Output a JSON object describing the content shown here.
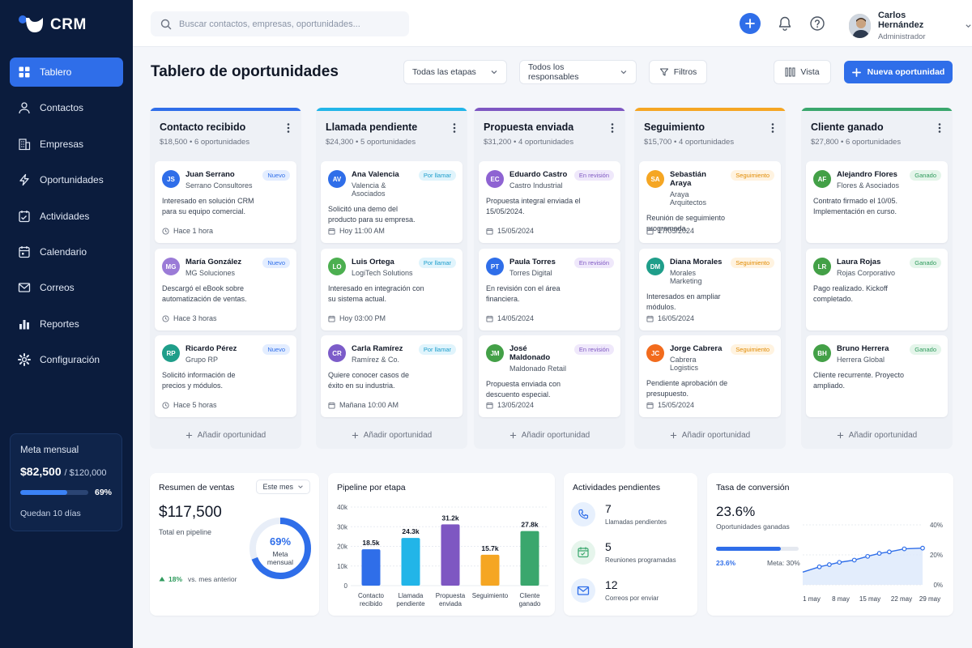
{
  "app": {
    "name": "CRM"
  },
  "colors": {
    "accent": "#2f6ee9",
    "sidebar": "#0b1c3d"
  },
  "nav": [
    {
      "label": "Tablero",
      "icon": "grid-icon"
    },
    {
      "label": "Contactos",
      "icon": "users-icon"
    },
    {
      "label": "Empresas",
      "icon": "building-icon"
    },
    {
      "label": "Oportunidades",
      "icon": "bolt-icon"
    },
    {
      "label": "Actividades",
      "icon": "checklist-icon"
    },
    {
      "label": "Calendario",
      "icon": "calendar-icon"
    },
    {
      "label": "Correos",
      "icon": "mail-icon"
    },
    {
      "label": "Reportes",
      "icon": "bar-chart-icon"
    },
    {
      "label": "Configuración",
      "icon": "gear-icon"
    }
  ],
  "goal": {
    "title": "Meta mensual",
    "amount": "$82,500",
    "target": "/ $120,000",
    "percent": "69%",
    "progress": 0.69,
    "remaining": "Quedan 10 días"
  },
  "search": {
    "placeholder": "Buscar contactos, empresas, oportunidades..."
  },
  "user": {
    "name": "Carlos Hernández",
    "role": "Administrador"
  },
  "page": {
    "title": "Tablero de oportunidades"
  },
  "toolbar": {
    "stages": "Todas las etapas",
    "owners": "Todos los responsables",
    "filters": "Filtros",
    "view": "Vista",
    "new_opportunity": "Nueva oportunidad"
  },
  "add_label": "Añadir oportunidad",
  "columns": [
    {
      "title": "Contacto recibido",
      "summary": "$18,500 • 6 oportunidades",
      "color": "#2f6ee9",
      "badge": "Nuevo",
      "badge_bg": "#e3edff",
      "badge_fg": "#2f6ee9",
      "time_icon": "clock",
      "cards": [
        {
          "initials": "JS",
          "color": "#2f6ee9",
          "name": "Juan Serrano",
          "company": "Serrano Consultores",
          "desc": "Interesado en solución CRM para su equipo comercial.",
          "time": "Hace 1 hora"
        },
        {
          "initials": "MG",
          "color": "#9b7bd7",
          "name": "María González",
          "company": "MG Soluciones",
          "desc": "Descargó el eBook sobre automatización de ventas.",
          "time": "Hace 3 horas"
        },
        {
          "initials": "RP",
          "color": "#1f9e8a",
          "name": "Ricardo Pérez",
          "company": "Grupo RP",
          "desc": "Solicitó información de precios y módulos.",
          "time": "Hace 5 horas"
        }
      ]
    },
    {
      "title": "Llamada pendiente",
      "summary": "$24,300 • 5 oportunidades",
      "color": "#22b5e8",
      "badge": "Por llamar",
      "badge_bg": "#e0f4fc",
      "badge_fg": "#1a9ccb",
      "time_icon": "calendar",
      "cards": [
        {
          "initials": "AV",
          "color": "#2f6ee9",
          "name": "Ana Valencia",
          "company": "Valencia & Asociados",
          "desc": "Solicitó una demo del producto para su empresa.",
          "time": "Hoy 11:00 AM"
        },
        {
          "initials": "LO",
          "color": "#4caf50",
          "name": "Luis Ortega",
          "company": "LogiTech Solutions",
          "desc": "Interesado en integración con su sistema actual.",
          "time": "Hoy 03:00 PM"
        },
        {
          "initials": "CR",
          "color": "#7c5cc9",
          "name": "Carla Ramírez",
          "company": "Ramírez & Co.",
          "desc": "Quiere conocer casos de éxito en su industria.",
          "time": "Mañana 10:00 AM"
        }
      ]
    },
    {
      "title": "Propuesta enviada",
      "summary": "$31,200 • 4 oportunidades",
      "color": "#7e57c2",
      "badge": "En revisión",
      "badge_bg": "#efe8fb",
      "badge_fg": "#7e57c2",
      "time_icon": "calendar",
      "cards": [
        {
          "initials": "EC",
          "color": "#8e63d2",
          "name": "Eduardo Castro",
          "company": "Castro Industrial",
          "desc": "Propuesta integral enviada el 15/05/2024.",
          "time": "15/05/2024"
        },
        {
          "initials": "PT",
          "color": "#2f6ee9",
          "name": "Paula Torres",
          "company": "Torres Digital",
          "desc": "En revisión con el área financiera.",
          "time": "14/05/2024"
        },
        {
          "initials": "JM",
          "color": "#43a047",
          "name": "José Maldonado",
          "company": "Maldonado Retail",
          "desc": "Propuesta enviada con descuento especial.",
          "time": "13/05/2024"
        }
      ]
    },
    {
      "title": "Seguimiento",
      "summary": "$15,700 • 4 oportunidades",
      "color": "#f5a623",
      "badge": "Seguimiento",
      "badge_bg": "#fff3e0",
      "badge_fg": "#e08a00",
      "time_icon": "calendar",
      "cards": [
        {
          "initials": "SA",
          "color": "#f5a623",
          "name": "Sebastián Araya",
          "company": "Araya Arquitectos",
          "desc": "Reunión de seguimiento programada.",
          "time": "17/05/2024"
        },
        {
          "initials": "DM",
          "color": "#1f9e8a",
          "name": "Diana Morales",
          "company": "Morales Marketing",
          "desc": "Interesados en ampliar módulos.",
          "time": "16/05/2024"
        },
        {
          "initials": "JC",
          "color": "#f26b1d",
          "name": "Jorge Cabrera",
          "company": "Cabrera Logistics",
          "desc": "Pendiente aprobación de presupuesto.",
          "time": "15/05/2024"
        }
      ]
    },
    {
      "title": "Cliente ganado",
      "summary": "$27,800 • 6 oportunidades",
      "color": "#3aa76d",
      "badge": "Ganado",
      "badge_bg": "#e4f5ea",
      "badge_fg": "#2e9a5c",
      "time_icon": "none",
      "cards": [
        {
          "initials": "AF",
          "color": "#43a047",
          "name": "Alejandro Flores",
          "company": "Flores & Asociados",
          "desc": "Contrato firmado el 10/05. Implementación en curso.",
          "time": ""
        },
        {
          "initials": "LR",
          "color": "#43a047",
          "name": "Laura Rojas",
          "company": "Rojas Corporativo",
          "desc": "Pago realizado. Kickoff completado.",
          "time": ""
        },
        {
          "initials": "BH",
          "color": "#43a047",
          "name": "Bruno Herrera",
          "company": "Herrera Global",
          "desc": "Cliente recurrente. Proyecto ampliado.",
          "time": ""
        }
      ]
    }
  ],
  "sales_summary": {
    "title": "Resumen de ventas",
    "period": "Este mes",
    "total": "$117,500",
    "total_label": "Total en pipeline",
    "donut_percent": "69%",
    "donut_value": 0.69,
    "donut_label_1": "Meta",
    "donut_label_2": "mensual",
    "trend": "18%",
    "trend_label": "vs. mes anterior"
  },
  "pipeline": {
    "title": "Pipeline por etapa"
  },
  "activities": {
    "title": "Actividades pendientes",
    "items": [
      {
        "count": "7",
        "label": "Llamadas pendientes",
        "icon": "phone-icon",
        "bg": "#e7f0fd",
        "fg": "#2f6ee9"
      },
      {
        "count": "5",
        "label": "Reuniones programadas",
        "icon": "calendar-check-icon",
        "bg": "#e6f5ec",
        "fg": "#3aa76d"
      },
      {
        "count": "12",
        "label": "Correos por enviar",
        "icon": "mail-icon",
        "bg": "#e7f0fd",
        "fg": "#2f6ee9"
      }
    ]
  },
  "conversion": {
    "title": "Tasa de conversión",
    "value": "23.6%",
    "label": "Oportunidades ganadas",
    "bar_value": "23.6%",
    "bar_fraction": 0.786,
    "goal": "Meta: 30%"
  },
  "chart_data": [
    {
      "type": "bar",
      "title": "Pipeline por etapa",
      "categories": [
        [
          "Contacto",
          "recibido"
        ],
        [
          "Llamada",
          "pendiente"
        ],
        [
          "Propuesta",
          "enviada"
        ],
        [
          "Seguimiento"
        ],
        [
          "Cliente",
          "ganado"
        ]
      ],
      "values": [
        18.5,
        24.3,
        31.2,
        15.7,
        27.8
      ],
      "labels": [
        "18.5k",
        "24.3k",
        "31.2k",
        "15.7k",
        "27.8k"
      ],
      "colors": [
        "#2f6ee9",
        "#22b5e8",
        "#7e57c2",
        "#f5a623",
        "#3aa76d"
      ],
      "yticks": [
        "40k",
        "30k",
        "20k",
        "10k",
        "0"
      ],
      "ylim": [
        0,
        40
      ],
      "grid": true
    },
    {
      "type": "area",
      "title": "Tasa de conversión",
      "x": [
        "1 may",
        "8 may",
        "15 may",
        "22 may",
        "29 may"
      ],
      "points": [
        [
          0,
          8.5
        ],
        [
          1,
          12
        ],
        [
          1.6,
          13.5
        ],
        [
          2.2,
          15
        ],
        [
          3.1,
          16.5
        ],
        [
          3.9,
          19
        ],
        [
          4.6,
          21
        ],
        [
          5.2,
          22
        ],
        [
          6.1,
          24
        ],
        [
          7.2,
          24.5
        ]
      ],
      "yticks": [
        "40%",
        "20%",
        "0%"
      ],
      "ylim": [
        0,
        40
      ],
      "grid": true
    }
  ]
}
